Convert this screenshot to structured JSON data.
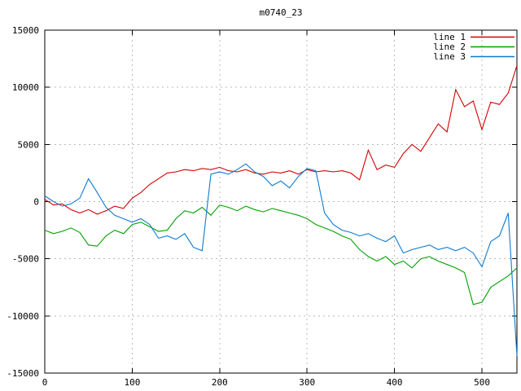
{
  "chart_data": {
    "type": "line",
    "title": "m0740_23",
    "xlabel": "",
    "ylabel": "",
    "xlim": [
      0,
      540
    ],
    "ylim": [
      -15000,
      15000
    ],
    "x_ticks": [
      0,
      100,
      200,
      300,
      400,
      500
    ],
    "y_ticks": [
      -15000,
      -10000,
      -5000,
      0,
      5000,
      10000,
      15000
    ],
    "grid": true,
    "legend_position": "top-right",
    "x_start": 0,
    "x_step": 10,
    "series": [
      {
        "name": "line 1",
        "color": "#d40000",
        "values": [
          200,
          -300,
          -200,
          -700,
          -1000,
          -700,
          -1100,
          -800,
          -400,
          -600,
          300,
          800,
          1500,
          2000,
          2500,
          2600,
          2800,
          2700,
          2900,
          2800,
          3000,
          2700,
          2600,
          2800,
          2500,
          2400,
          2600,
          2500,
          2700,
          2400,
          2800,
          2600,
          2700,
          2600,
          2700,
          2500,
          1900,
          4500,
          2800,
          3200,
          3000,
          4200,
          5000,
          4400,
          5600,
          6800,
          6100,
          9800,
          8300,
          8800,
          6300,
          8700,
          8500,
          9500,
          11900
        ]
      },
      {
        "name": "line 2",
        "color": "#00a000",
        "values": [
          -2500,
          -2800,
          -2600,
          -2300,
          -2700,
          -3800,
          -3900,
          -3000,
          -2500,
          -2800,
          -2000,
          -1800,
          -2200,
          -2600,
          -2500,
          -1500,
          -800,
          -1000,
          -500,
          -1200,
          -300,
          -500,
          -800,
          -400,
          -700,
          -900,
          -600,
          -800,
          -1000,
          -1200,
          -1500,
          -2000,
          -2300,
          -2600,
          -3000,
          -3300,
          -4200,
          -4800,
          -5200,
          -4800,
          -5500,
          -5200,
          -5800,
          -5000,
          -4800,
          -5200,
          -5500,
          -5800,
          -6200,
          -9000,
          -8800,
          -7500,
          -7000,
          -6500,
          -5800
        ]
      },
      {
        "name": "line 3",
        "color": "#0f7ad1",
        "values": [
          500,
          0,
          -400,
          -200,
          300,
          2000,
          800,
          -500,
          -1200,
          -1500,
          -1800,
          -1500,
          -2000,
          -3200,
          -3000,
          -3300,
          -2800,
          -4000,
          -4300,
          2400,
          2600,
          2400,
          2800,
          3300,
          2600,
          2200,
          1400,
          1800,
          1200,
          2200,
          2900,
          2700,
          -1000,
          -2000,
          -2500,
          -2700,
          -3000,
          -2800,
          -3200,
          -3500,
          -3000,
          -4500,
          -4200,
          -4000,
          -3800,
          -4200,
          -4000,
          -4300,
          -4000,
          -4500,
          -5700,
          -3500,
          -3000,
          -1000,
          -13500
        ]
      }
    ]
  }
}
